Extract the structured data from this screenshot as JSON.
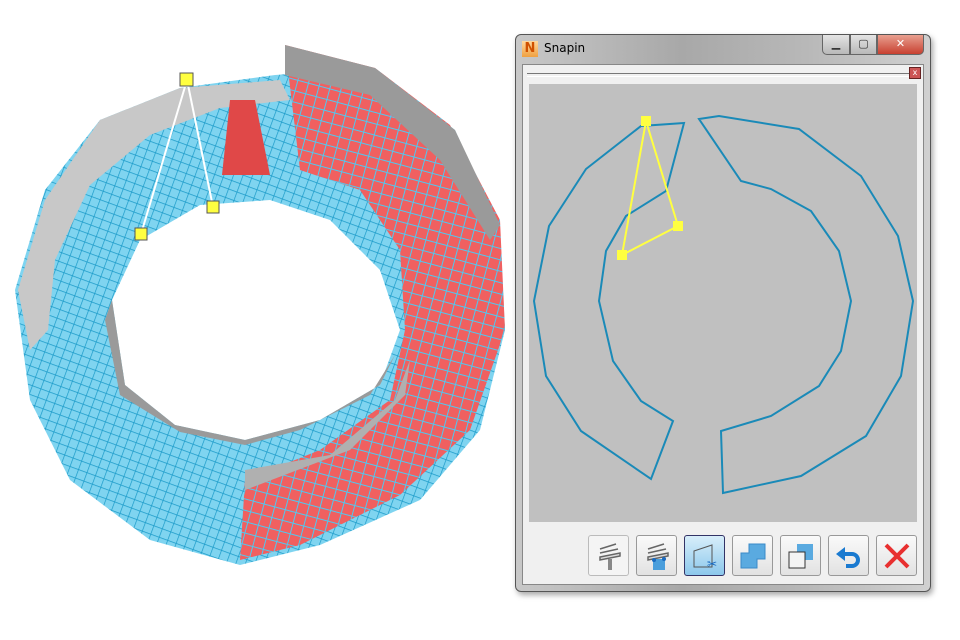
{
  "window": {
    "title": "Snapin",
    "app_icon_letter": "N",
    "controls": {
      "minimize": "▁",
      "maximize": "▢",
      "close": "✕"
    }
  },
  "panel": {
    "close": "x"
  },
  "toolbar": {
    "buttons": [
      {
        "icon": "extrude-icon",
        "state": "disabled"
      },
      {
        "icon": "extrude-snap-icon",
        "state": "normal"
      },
      {
        "icon": "cut-section-icon",
        "state": "active"
      },
      {
        "icon": "union-icon",
        "state": "normal"
      },
      {
        "icon": "subtract-icon",
        "state": "normal"
      },
      {
        "icon": "undo-icon",
        "state": "normal"
      },
      {
        "icon": "cancel-icon",
        "state": "normal"
      }
    ]
  },
  "colors": {
    "profile": "#1a8ab8",
    "selection": "#ffff40",
    "mesh": "#40c0e8",
    "highlight": "#ff4040"
  }
}
